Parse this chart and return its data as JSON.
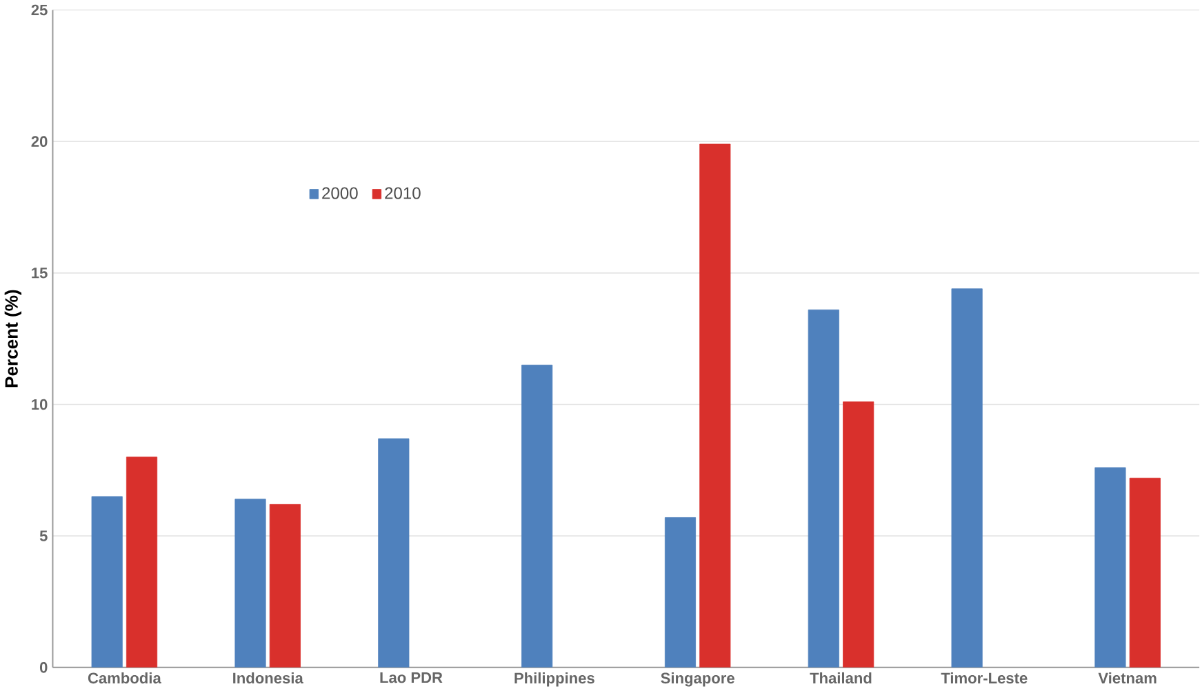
{
  "chart_data": {
    "type": "bar",
    "ylabel": "Percent (%)",
    "categories": [
      "Cambodia",
      "Indonesia",
      "Lao PDR",
      "Philippines",
      "Singapore",
      "Thailand",
      "Timor-Leste",
      "Vietnam"
    ],
    "series": [
      {
        "name": "2000",
        "color": "#4f81bd",
        "values": [
          6.5,
          6.4,
          8.7,
          11.5,
          5.7,
          13.6,
          14.4,
          7.6
        ]
      },
      {
        "name": "2010",
        "color": "#d9302c",
        "values": [
          8.0,
          6.2,
          null,
          null,
          19.9,
          10.1,
          null,
          7.2
        ]
      }
    ],
    "ylim": [
      0,
      25
    ],
    "yticks": [
      0,
      5,
      10,
      15,
      20,
      25
    ],
    "grid": "y",
    "legend": "top left"
  }
}
